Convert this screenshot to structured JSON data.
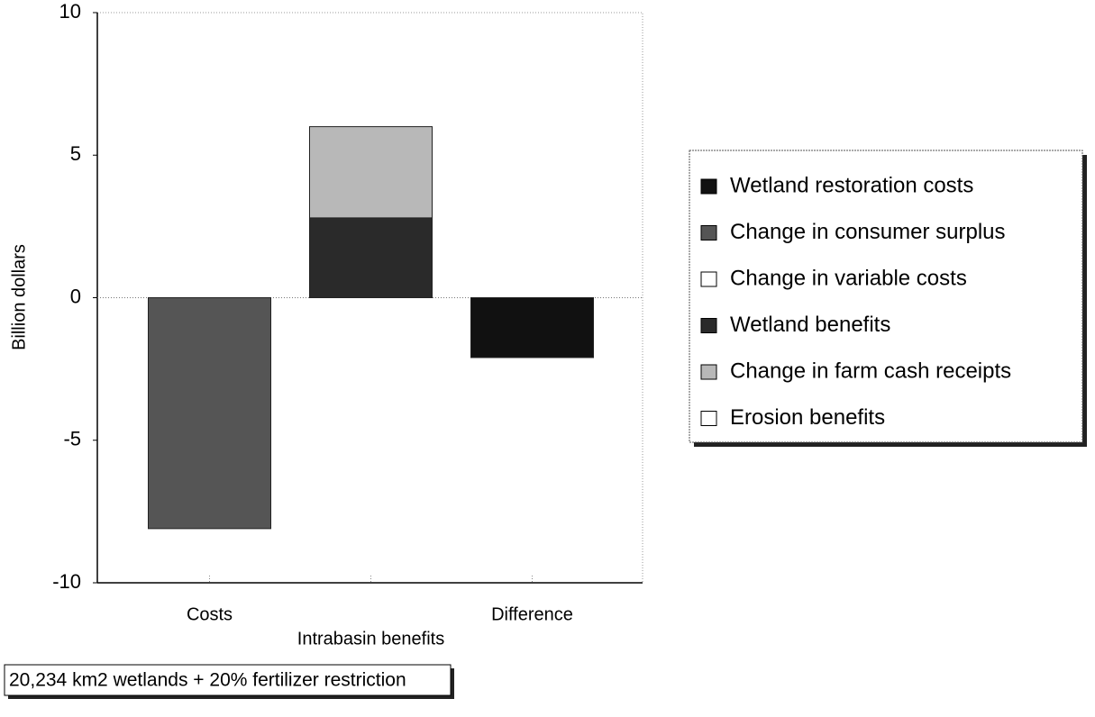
{
  "chart_data": {
    "type": "stacked_bar",
    "categories": [
      "Costs",
      "Intrabasin benefits",
      "Difference"
    ],
    "series": [
      {
        "name": "Wetland restoration costs",
        "color": "#111111",
        "values": [
          null,
          null,
          -2.1
        ]
      },
      {
        "name": "Change in consumer surplus",
        "color": "#555555",
        "values": [
          -8.1,
          null,
          null
        ]
      },
      {
        "name": "Change in variable costs",
        "color": "#ffffff",
        "values": [
          null,
          null,
          null
        ]
      },
      {
        "name": "Wetland benefits",
        "color": "#2a2a2a",
        "values": [
          null,
          2.8,
          null
        ]
      },
      {
        "name": "Change in farm cash receipts",
        "color": "#b8b8b8",
        "values": [
          null,
          3.2,
          null
        ]
      },
      {
        "name": "Erosion benefits",
        "color": "#ffffff",
        "values": [
          null,
          null,
          null
        ]
      }
    ],
    "y_label": "Billion dollars",
    "ylim": [
      -10,
      10
    ],
    "yticks": [
      -10,
      -5,
      0,
      5,
      10
    ],
    "annotation": "20,234 km2 wetlands + 20% fertilizer restriction",
    "legend": "right"
  }
}
